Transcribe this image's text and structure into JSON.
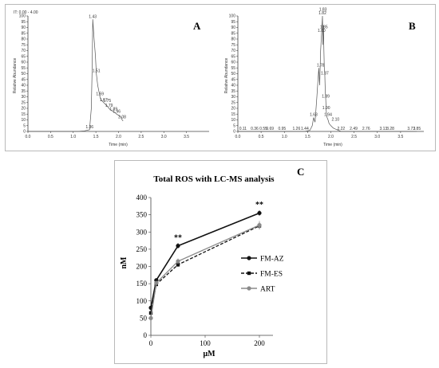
{
  "chart_data": [
    {
      "type": "line",
      "panel_letter": "A",
      "header": "IT: 0.00 - 4.00",
      "xlabel": "Time (min)",
      "ylabel": "Relative Abundance",
      "xlim": [
        0,
        4
      ],
      "ylim": [
        0,
        100
      ],
      "x_ticks": [
        "0.0",
        "0.5",
        "1.0",
        "1.5",
        "2.0",
        "2.5",
        "3.0",
        "3.5"
      ],
      "y_ticks": [
        "0",
        "5",
        "10",
        "15",
        "20",
        "25",
        "30",
        "35",
        "40",
        "45",
        "50",
        "55",
        "60",
        "65",
        "70",
        "75",
        "80",
        "85",
        "90",
        "95",
        "100"
      ],
      "series": [
        {
          "x": [
            0,
            1.1,
            1.25,
            1.36,
            1.4,
            1.42,
            1.43,
            1.46,
            1.49,
            1.51,
            1.54,
            1.57,
            1.59,
            1.62,
            1.65,
            1.67,
            1.7,
            1.72,
            1.75,
            1.77,
            1.79,
            1.81,
            1.85,
            1.89,
            1.93,
            1.96,
            2.0,
            2.03,
            2.06,
            2.08,
            2.1
          ],
          "y": [
            0,
            0,
            0.5,
            1.5,
            20,
            60,
            97,
            80,
            65,
            50,
            40,
            34,
            30,
            27,
            26,
            25,
            24,
            23,
            22,
            21,
            20,
            19,
            18,
            17,
            16,
            15,
            14,
            13,
            12,
            10,
            9
          ]
        }
      ],
      "peak_labels": [
        {
          "x": 1.36,
          "y": 1.5,
          "text": "1.36"
        },
        {
          "x": 1.43,
          "y": 97,
          "text": "1.43"
        },
        {
          "x": 1.51,
          "y": 50,
          "text": "1.51"
        },
        {
          "x": 1.59,
          "y": 30,
          "text": "1.59"
        },
        {
          "x": 1.67,
          "y": 25,
          "text": "1.67"
        },
        {
          "x": 1.79,
          "y": 20,
          "text": "1.79"
        },
        {
          "x": 1.75,
          "y": 24,
          "text": "1.75"
        },
        {
          "x": 1.89,
          "y": 17,
          "text": "1.89"
        },
        {
          "x": 1.96,
          "y": 15,
          "text": "1.96"
        },
        {
          "x": 2.08,
          "y": 10,
          "text": "2.08"
        }
      ]
    },
    {
      "type": "line",
      "panel_letter": "B",
      "xlabel": "Time (min)",
      "ylabel": "Relative Abundance",
      "xlim": [
        0,
        4
      ],
      "ylim": [
        0,
        100
      ],
      "x_ticks": [
        "0.0",
        "0.5",
        "1.0",
        "1.5",
        "2.0",
        "2.5",
        "3.0",
        "3.5"
      ],
      "y_ticks": [
        "0",
        "5",
        "10",
        "15",
        "20",
        "25",
        "30",
        "35",
        "40",
        "45",
        "50",
        "55",
        "60",
        "65",
        "70",
        "75",
        "80",
        "85",
        "90",
        "95",
        "100"
      ],
      "series": [
        {
          "x": [
            0,
            0.11,
            0.36,
            0.55,
            0.69,
            0.95,
            1.26,
            1.44,
            1.55,
            1.6,
            1.63,
            1.66,
            1.7,
            1.74,
            1.76,
            1.78,
            1.8,
            1.82,
            1.83,
            1.84,
            1.85,
            1.86,
            1.87,
            1.88,
            1.89,
            1.9,
            1.92,
            1.94,
            1.96,
            2.0,
            2.05,
            2.1,
            2.22,
            2.49,
            2.76,
            3.13,
            3.28,
            3.73,
            3.85
          ],
          "y": [
            0,
            0,
            0,
            0,
            0,
            0,
            0,
            0,
            1,
            5,
            12,
            8,
            30,
            55,
            40,
            70,
            85,
            100,
            75,
            92,
            70,
            55,
            50,
            35,
            28,
            18,
            12,
            10,
            7,
            5,
            3,
            2,
            0,
            0,
            0,
            0,
            0,
            0,
            0
          ]
        }
      ],
      "peak_labels": [
        {
          "x": 0.11,
          "y": 0,
          "text": "0.11"
        },
        {
          "x": 0.36,
          "y": 0,
          "text": "0.36"
        },
        {
          "x": 0.55,
          "y": 0,
          "text": "0.55"
        },
        {
          "x": 0.69,
          "y": 0,
          "text": "0.69"
        },
        {
          "x": 0.95,
          "y": 0,
          "text": "0.95"
        },
        {
          "x": 1.26,
          "y": 0,
          "text": "1.26"
        },
        {
          "x": 1.44,
          "y": 0,
          "text": "1.44"
        },
        {
          "x": 1.63,
          "y": 12,
          "text": "1.63"
        },
        {
          "x": 1.78,
          "y": 55,
          "text": "1.78"
        },
        {
          "x": 1.8,
          "y": 85,
          "text": "1.80"
        },
        {
          "x": 1.82,
          "y": 100,
          "text": "1.82"
        },
        {
          "x": 1.83,
          "y": 103,
          "text": "1.83"
        },
        {
          "x": 1.85,
          "y": 88,
          "text": "1.85"
        },
        {
          "x": 1.87,
          "y": 48,
          "text": "1.87"
        },
        {
          "x": 1.89,
          "y": 28,
          "text": "1.89"
        },
        {
          "x": 1.9,
          "y": 18,
          "text": "1.90"
        },
        {
          "x": 1.94,
          "y": 12,
          "text": "1.94"
        },
        {
          "x": 2.1,
          "y": 8,
          "text": "2.10"
        },
        {
          "x": 2.22,
          "y": 0,
          "text": "2.22"
        },
        {
          "x": 2.49,
          "y": 0,
          "text": "2.49"
        },
        {
          "x": 2.76,
          "y": 0,
          "text": "2.76"
        },
        {
          "x": 3.13,
          "y": 0,
          "text": "3.13"
        },
        {
          "x": 3.28,
          "y": 0,
          "text": "3.28"
        },
        {
          "x": 3.73,
          "y": 0,
          "text": "3.73"
        },
        {
          "x": 3.85,
          "y": 0,
          "text": "3.85"
        }
      ]
    },
    {
      "type": "line",
      "panel_letter": "C",
      "title": "Total ROS with LC-MS analysis",
      "xlabel": "μM",
      "ylabel": "nM",
      "xlim": [
        0,
        225
      ],
      "ylim": [
        0,
        400
      ],
      "x_ticks": [
        "0",
        "100",
        "200"
      ],
      "y_ticks": [
        "0",
        "50",
        "100",
        "150",
        "200",
        "250",
        "300",
        "350",
        "400"
      ],
      "legend_position": "right",
      "categories": [
        0,
        10,
        50,
        200
      ],
      "series": [
        {
          "name": "FM-AZ",
          "values": [
            80,
            160,
            260,
            355
          ],
          "err": [
            6,
            6,
            8,
            8
          ],
          "color": "#111111",
          "dash": "solid",
          "marker": "circle"
        },
        {
          "name": "FM-ES",
          "values": [
            65,
            148,
            205,
            318
          ],
          "err": [
            5,
            5,
            6,
            10
          ],
          "color": "#111111",
          "dash": "dashed",
          "marker": "square"
        },
        {
          "name": "ART",
          "values": [
            50,
            152,
            215,
            320
          ],
          "err": [
            5,
            5,
            8,
            12
          ],
          "color": "#8a8a8a",
          "dash": "solid",
          "marker": "circle"
        }
      ],
      "annotations": [
        {
          "x": 50,
          "y": 272,
          "text": "**"
        },
        {
          "x": 200,
          "y": 368,
          "text": "**"
        }
      ]
    }
  ]
}
